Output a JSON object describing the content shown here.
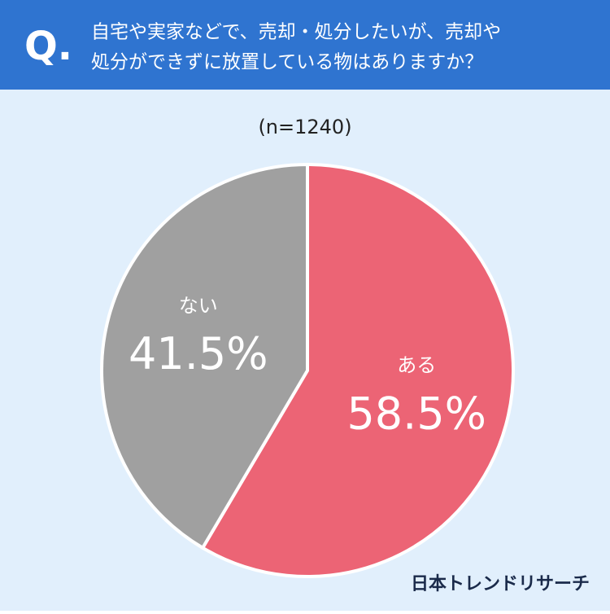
{
  "header": {
    "mark": "Q.",
    "question_lines": [
      "自宅や実家などで、売却・処分したいが、売却や",
      "処分ができずに放置している物はありますか？"
    ]
  },
  "chart_data": {
    "type": "pie",
    "subtitle": "(n=1240)",
    "categories": [
      "ある",
      "ない"
    ],
    "values": [
      58.5,
      41.5
    ],
    "value_labels": [
      "58.5%",
      "41.5%"
    ],
    "colors": [
      "#ec6475",
      "#a0a0a0"
    ]
  },
  "footer": {
    "brand": "日本トレンドリサーチ"
  }
}
